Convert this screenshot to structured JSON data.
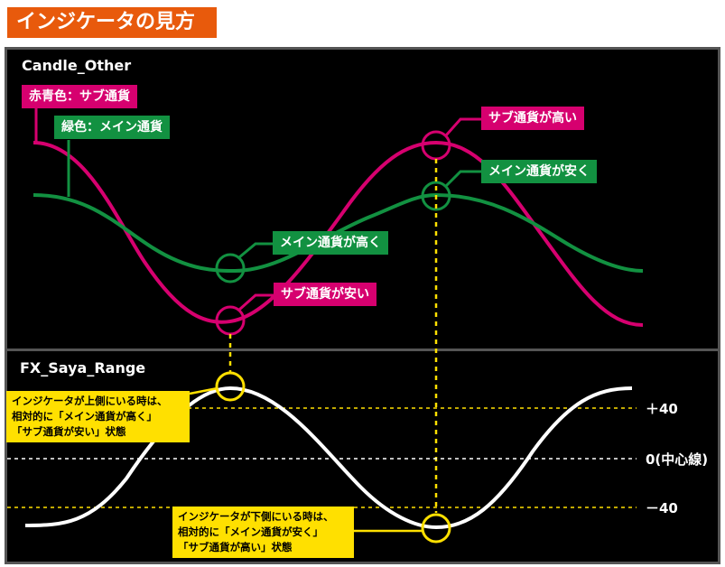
{
  "title": "インジケータの見方",
  "top_panel": {
    "title": "Candle_Other",
    "legend_pink": "赤青色：サブ通貨",
    "legend_green": "緑色：メイン通貨",
    "callouts": {
      "sub_high": "サブ通貨が高い",
      "main_cheap": "メイン通貨が安く",
      "main_high": "メイン通貨が高く",
      "sub_cheap": "サブ通貨が安い"
    }
  },
  "bottom_panel": {
    "title": "FX_Saya_Range",
    "level_plus": "＋40",
    "level_zero": "0(中心線)",
    "level_minus": "－40",
    "note_upper": [
      "インジケータが上側にいる時は、",
      "相対的に「メイン通貨が高く」",
      "「サブ通貨が安い」状態"
    ],
    "note_lower": [
      "インジケータが下側にいる時は、",
      "相対的に「メイン通貨が安く」",
      "「サブ通貨が高い」状態"
    ]
  },
  "colors": {
    "title_bg": "#e85a0c",
    "pink": "#d6006f",
    "green": "#129141",
    "yellow": "#ffe000",
    "panel_bg": "#000000",
    "panel_border": "#555555"
  }
}
